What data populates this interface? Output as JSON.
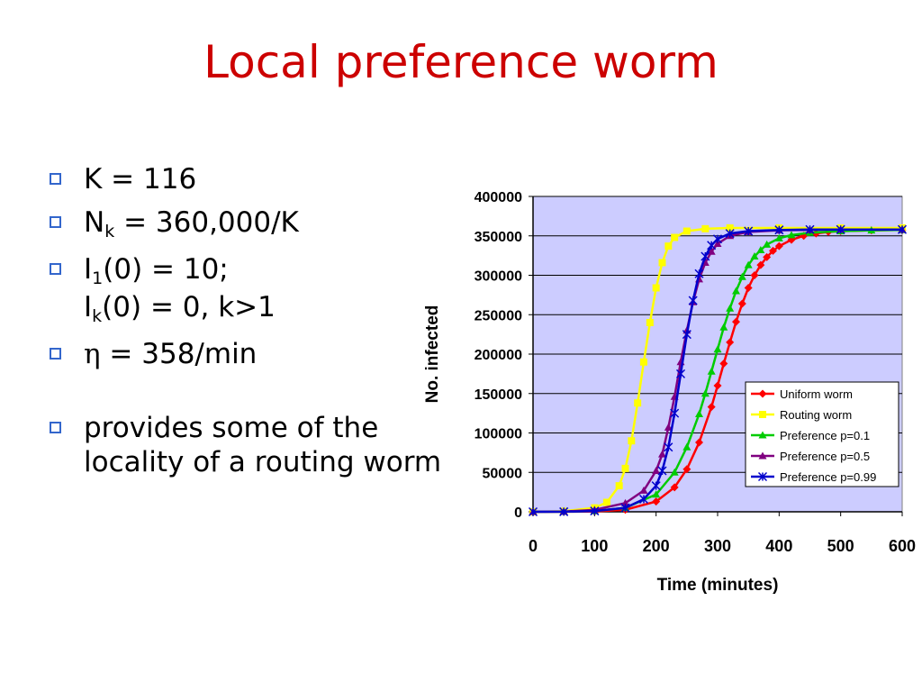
{
  "slide": {
    "title": "Local preference worm"
  },
  "bullets": {
    "k": "K = 116",
    "nk_base": "N",
    "nk_sub": "k",
    "nk_rest": " = 360,000/K",
    "i1_base": "I",
    "i1_sub": "1",
    "i1_rest": "(0) = 10;",
    "ik_base": "I",
    "ik_sub": "k",
    "ik_rest": "(0) = 0, k>1",
    "eta_symbol": "η",
    "eta_rest": " = 358/min",
    "locality": "provides some of the locality of a routing worm"
  },
  "chart_data": {
    "type": "line",
    "xlabel": "Time (minutes)",
    "ylabel": "No. infected",
    "xlim": [
      0,
      600
    ],
    "ylim": [
      0,
      400000
    ],
    "x_ticks": [
      0,
      100,
      200,
      300,
      400,
      500,
      600
    ],
    "y_ticks": [
      0,
      50000,
      100000,
      150000,
      200000,
      250000,
      300000,
      350000,
      400000
    ],
    "grid": "horizontal",
    "plot_background": "#ccccff",
    "legend_position": "bottom-right",
    "series": [
      {
        "name": "Uniform worm",
        "color": "#ff0000",
        "marker": "diamond",
        "x": [
          0,
          50,
          100,
          150,
          200,
          230,
          250,
          270,
          290,
          300,
          310,
          320,
          330,
          340,
          350,
          360,
          370,
          380,
          390,
          400,
          420,
          440,
          460,
          480,
          500,
          550,
          600
        ],
        "y": [
          0,
          80,
          450,
          2600,
          13000,
          31000,
          54000,
          88000,
          133000,
          160000,
          188000,
          215000,
          241000,
          264000,
          284000,
          300000,
          313000,
          323000,
          331000,
          337000,
          345000,
          350000,
          353000,
          355000,
          356000,
          357000,
          357500
        ]
      },
      {
        "name": "Routing worm",
        "color": "#ffff00",
        "marker": "square",
        "x": [
          0,
          50,
          100,
          120,
          140,
          150,
          160,
          170,
          180,
          190,
          200,
          210,
          220,
          230,
          250,
          280,
          320,
          400,
          500,
          600
        ],
        "y": [
          0,
          700,
          5000,
          12000,
          33000,
          55000,
          90000,
          138000,
          190000,
          240000,
          284000,
          316000,
          337000,
          348000,
          356000,
          359000,
          360000,
          360000,
          360000,
          360000
        ]
      },
      {
        "name": "Preference p=0.1",
        "color": "#00cc00",
        "marker": "triangle",
        "x": [
          0,
          50,
          100,
          150,
          200,
          230,
          250,
          270,
          280,
          290,
          300,
          310,
          320,
          330,
          340,
          350,
          360,
          370,
          380,
          400,
          420,
          450,
          500,
          550,
          600
        ],
        "y": [
          0,
          150,
          1000,
          5000,
          22000,
          50000,
          82000,
          124000,
          150000,
          178000,
          206000,
          234000,
          258000,
          280000,
          298000,
          313000,
          324000,
          332000,
          339000,
          347000,
          351000,
          354000,
          356000,
          357000,
          357500
        ]
      },
      {
        "name": "Preference p=0.5",
        "color": "#800080",
        "marker": "triangle",
        "x": [
          0,
          50,
          100,
          150,
          180,
          200,
          210,
          220,
          230,
          240,
          250,
          260,
          270,
          280,
          290,
          300,
          320,
          350,
          400,
          450,
          500,
          600
        ],
        "y": [
          0,
          300,
          2500,
          11000,
          27000,
          52000,
          73000,
          107000,
          146000,
          190000,
          230000,
          266000,
          295000,
          316000,
          330000,
          340000,
          350000,
          355000,
          357000,
          357500,
          358000,
          358000
        ]
      },
      {
        "name": "Preference p=0.99",
        "color": "#0000cc",
        "marker": "star",
        "x": [
          0,
          50,
          100,
          150,
          180,
          200,
          210,
          220,
          230,
          240,
          250,
          260,
          270,
          280,
          290,
          300,
          320,
          350,
          400,
          450,
          500,
          600
        ],
        "y": [
          0,
          100,
          1000,
          5000,
          16000,
          33000,
          52000,
          82000,
          125000,
          175000,
          225000,
          268000,
          302000,
          324000,
          338000,
          346000,
          353000,
          356000,
          357500,
          358000,
          358000,
          358000
        ]
      }
    ]
  }
}
